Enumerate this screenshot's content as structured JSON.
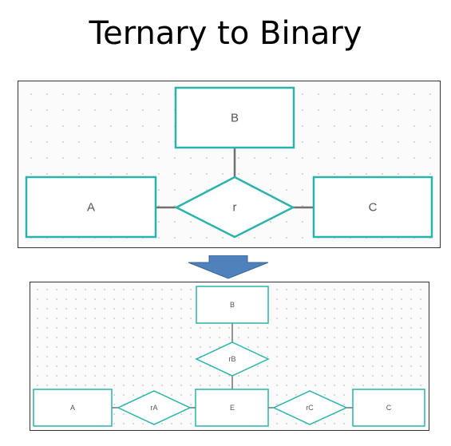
{
  "title": "Ternary to Binary",
  "colors": {
    "entity_border": "#2ab3ab",
    "connector": "#707070",
    "arrow": "#4f81bd",
    "label": "#555555"
  },
  "ternary_diagram": {
    "entities": {
      "b": "B",
      "a": "A",
      "c": "C"
    },
    "relationship": "r"
  },
  "binary_diagram": {
    "entities": {
      "b": "B",
      "a": "A",
      "e": "E",
      "c": "C"
    },
    "relationships": {
      "rb": "rB",
      "ra": "rA",
      "rc": "rC"
    }
  },
  "arrow_icon": "down-arrow-icon"
}
